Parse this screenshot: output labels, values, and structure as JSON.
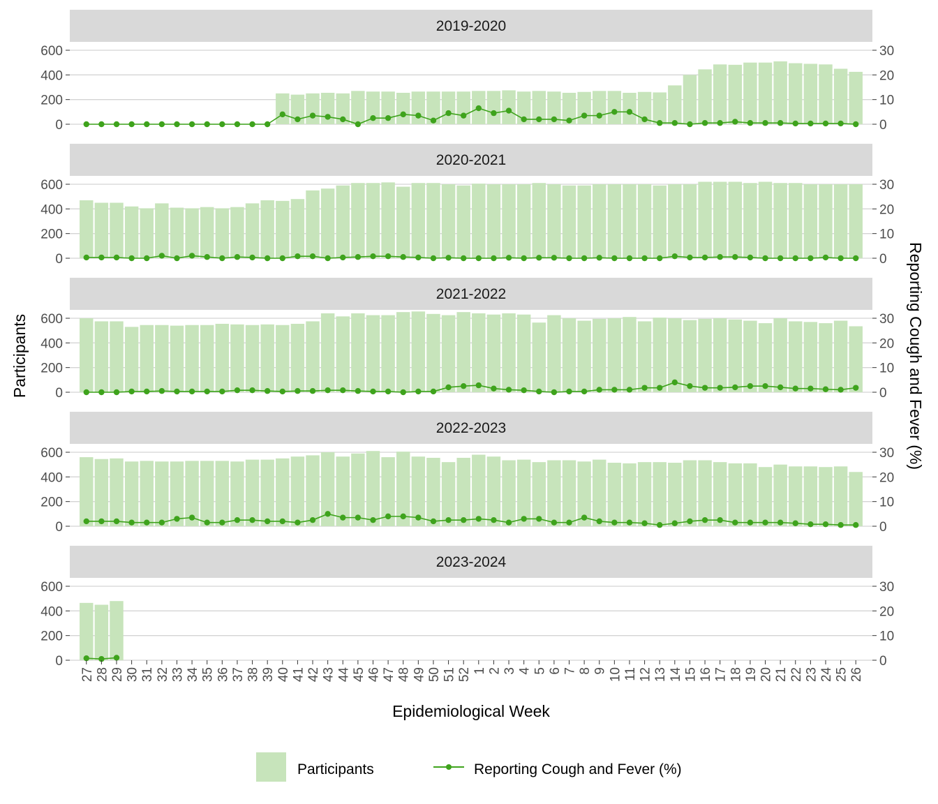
{
  "chart_data": {
    "type": "bar",
    "xlabel": "Epidemiological Week",
    "ylabel": "Participants",
    "y2label": "Reporting Cough and Fever (%)",
    "ylim": [
      0,
      600
    ],
    "y2lim": [
      0,
      30
    ],
    "yticks": [
      0,
      200,
      400,
      600
    ],
    "y2ticks": [
      0,
      10,
      20,
      30
    ],
    "categories": [
      "27",
      "28",
      "29",
      "30",
      "31",
      "32",
      "33",
      "34",
      "35",
      "36",
      "37",
      "38",
      "39",
      "40",
      "41",
      "42",
      "43",
      "44",
      "45",
      "46",
      "47",
      "48",
      "49",
      "50",
      "51",
      "52",
      "1",
      "2",
      "3",
      "4",
      "5",
      "6",
      "7",
      "8",
      "9",
      "10",
      "11",
      "12",
      "13",
      "14",
      "15",
      "16",
      "17",
      "18",
      "19",
      "20",
      "21",
      "22",
      "23",
      "24",
      "25",
      "26"
    ],
    "grid": true,
    "legend_position": "bottom",
    "colors": {
      "bar": "#c7e4bb",
      "line": "#3ea31c",
      "strip": "#d9d9d9",
      "grid": "#d4d4d4"
    },
    "legend": [
      {
        "label": "Participants",
        "kind": "bar"
      },
      {
        "label": "Reporting Cough and Fever (%)",
        "kind": "line"
      }
    ],
    "panels": [
      {
        "title": "2019-2020",
        "participants": [
          null,
          null,
          null,
          null,
          null,
          null,
          null,
          null,
          null,
          null,
          null,
          null,
          null,
          250,
          240,
          250,
          255,
          250,
          270,
          265,
          265,
          255,
          265,
          265,
          265,
          265,
          270,
          270,
          275,
          265,
          270,
          265,
          255,
          262,
          270,
          270,
          255,
          262,
          258,
          315,
          400,
          445,
          485,
          482,
          500,
          500,
          510,
          495,
          490,
          485,
          450,
          425
        ],
        "cough_fever_pct": [
          0,
          0,
          0,
          0,
          0,
          0,
          0,
          0,
          0,
          0,
          0,
          0,
          0,
          4,
          2,
          3.5,
          3,
          2,
          0,
          2.5,
          2.5,
          4,
          3.5,
          1.5,
          4.5,
          3.5,
          6.5,
          4.5,
          5.5,
          2,
          2,
          2,
          1.5,
          3.5,
          3.5,
          5,
          5,
          2,
          0.5,
          0.5,
          0,
          0.5,
          0.5,
          1,
          0.5,
          0.5,
          0.5,
          0.3,
          0.3,
          0.3,
          0.3,
          0
        ]
      },
      {
        "title": "2020-2021",
        "participants": [
          470,
          450,
          450,
          420,
          405,
          445,
          410,
          405,
          415,
          405,
          415,
          445,
          470,
          465,
          480,
          550,
          565,
          590,
          610,
          610,
          615,
          580,
          610,
          610,
          600,
          590,
          605,
          600,
          600,
          600,
          610,
          600,
          590,
          590,
          600,
          600,
          600,
          600,
          590,
          600,
          600,
          620,
          620,
          620,
          610,
          620,
          610,
          610,
          600,
          600,
          600,
          600
        ],
        "cough_fever_pct": [
          0.3,
          0.3,
          0.3,
          0,
          0,
          1,
          0,
          1,
          0.5,
          0,
          0.5,
          0.3,
          0,
          0,
          0.8,
          0.8,
          0,
          0.3,
          0.5,
          0.8,
          0.8,
          0.5,
          0.3,
          0,
          0.2,
          0,
          0,
          0,
          0.2,
          0,
          0.2,
          0.2,
          0,
          0,
          0.2,
          0,
          0,
          0,
          0,
          0.8,
          0.3,
          0.3,
          0.5,
          0.5,
          0.3,
          0,
          0,
          0,
          0,
          0.3,
          0,
          0
        ]
      },
      {
        "title": "2021-2022",
        "participants": [
          600,
          575,
          575,
          530,
          545,
          545,
          540,
          545,
          545,
          555,
          550,
          545,
          550,
          545,
          555,
          575,
          640,
          615,
          640,
          625,
          625,
          650,
          655,
          635,
          625,
          650,
          640,
          630,
          640,
          630,
          565,
          625,
          600,
          580,
          595,
          600,
          610,
          575,
          605,
          600,
          585,
          595,
          600,
          590,
          580,
          560,
          600,
          575,
          570,
          560,
          580,
          535
        ],
        "cough_fever_pct": [
          0,
          0,
          0,
          0.3,
          0.3,
          0.5,
          0.3,
          0.3,
          0.3,
          0.3,
          0.8,
          0.8,
          0.5,
          0.3,
          0.5,
          0.5,
          0.8,
          0.8,
          0.5,
          0.3,
          0.3,
          0,
          0.3,
          0.3,
          2,
          2.5,
          2.8,
          1.5,
          1,
          0.8,
          0.3,
          0,
          0.3,
          0.3,
          1,
          1,
          1,
          1.8,
          1.8,
          4,
          2.5,
          1.8,
          1.8,
          2,
          2.5,
          2.5,
          2,
          1.5,
          1.5,
          1.2,
          1,
          1.8
        ]
      },
      {
        "title": "2022-2023",
        "participants": [
          560,
          545,
          550,
          525,
          530,
          525,
          525,
          530,
          530,
          530,
          525,
          540,
          540,
          550,
          565,
          575,
          600,
          565,
          590,
          610,
          560,
          605,
          565,
          555,
          520,
          555,
          580,
          565,
          535,
          540,
          520,
          535,
          535,
          525,
          540,
          515,
          510,
          520,
          520,
          515,
          535,
          535,
          520,
          510,
          510,
          480,
          500,
          485,
          485,
          480,
          485,
          440
        ],
        "cough_fever_pct": [
          2,
          2,
          2,
          1.5,
          1.5,
          1.5,
          3,
          3.5,
          1.5,
          1.5,
          2.5,
          2.5,
          2,
          2,
          1.5,
          2.5,
          5,
          3.5,
          3.5,
          2.5,
          4,
          4,
          3.5,
          2,
          2.5,
          2.5,
          3,
          2.5,
          1.5,
          3,
          3,
          1.5,
          1.5,
          3.5,
          2,
          1.5,
          1.5,
          1.2,
          0.5,
          1.2,
          2,
          2.5,
          2.5,
          1.5,
          1.5,
          1.5,
          1.5,
          1.2,
          0.8,
          0.8,
          0.5,
          0.5
        ]
      },
      {
        "title": "2023-2024",
        "participants": [
          465,
          450,
          480,
          null,
          null,
          null,
          null,
          null,
          null,
          null,
          null,
          null,
          null,
          null,
          null,
          null,
          null,
          null,
          null,
          null,
          null,
          null,
          null,
          null,
          null,
          null,
          null,
          null,
          null,
          null,
          null,
          null,
          null,
          null,
          null,
          null,
          null,
          null,
          null,
          null,
          null,
          null,
          null,
          null,
          null,
          null,
          null,
          null,
          null,
          null,
          null,
          null
        ],
        "cough_fever_pct": [
          0.8,
          0.5,
          1,
          null,
          null,
          null,
          null,
          null,
          null,
          null,
          null,
          null,
          null,
          null,
          null,
          null,
          null,
          null,
          null,
          null,
          null,
          null,
          null,
          null,
          null,
          null,
          null,
          null,
          null,
          null,
          null,
          null,
          null,
          null,
          null,
          null,
          null,
          null,
          null,
          null,
          null,
          null,
          null,
          null,
          null,
          null,
          null,
          null,
          null,
          null,
          null,
          null
        ]
      }
    ]
  }
}
